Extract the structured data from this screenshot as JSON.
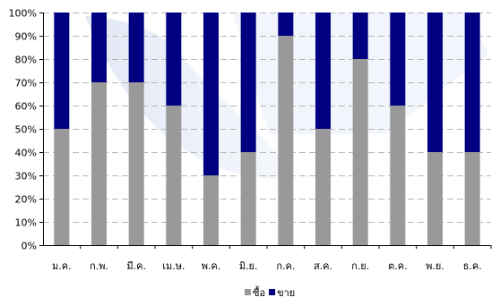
{
  "chart_data": {
    "type": "bar",
    "stacked": true,
    "categories": [
      "ม.ค.",
      "ก.พ.",
      "มี.ค.",
      "เม.ษ.",
      "พ.ค.",
      "มิ.ย.",
      "ก.ค.",
      "ส.ค.",
      "ก.ย.",
      "ต.ค.",
      "พ.ย.",
      "ธ.ค."
    ],
    "series": [
      {
        "name": "ซื้อ",
        "color": "#999999",
        "values": [
          50,
          70,
          70,
          60,
          30,
          40,
          90,
          50,
          80,
          60,
          40,
          40
        ]
      },
      {
        "name": "ขาย",
        "color": "#000080",
        "values": [
          50,
          30,
          30,
          40,
          70,
          60,
          10,
          50,
          20,
          40,
          60,
          60
        ]
      }
    ],
    "title": "",
    "xlabel": "",
    "ylabel": "",
    "ylim": [
      0,
      100
    ],
    "y_tick_step": 10,
    "y_tick_format": "percent",
    "grid": "horizontal-dashed",
    "legend": "bottom-center"
  }
}
